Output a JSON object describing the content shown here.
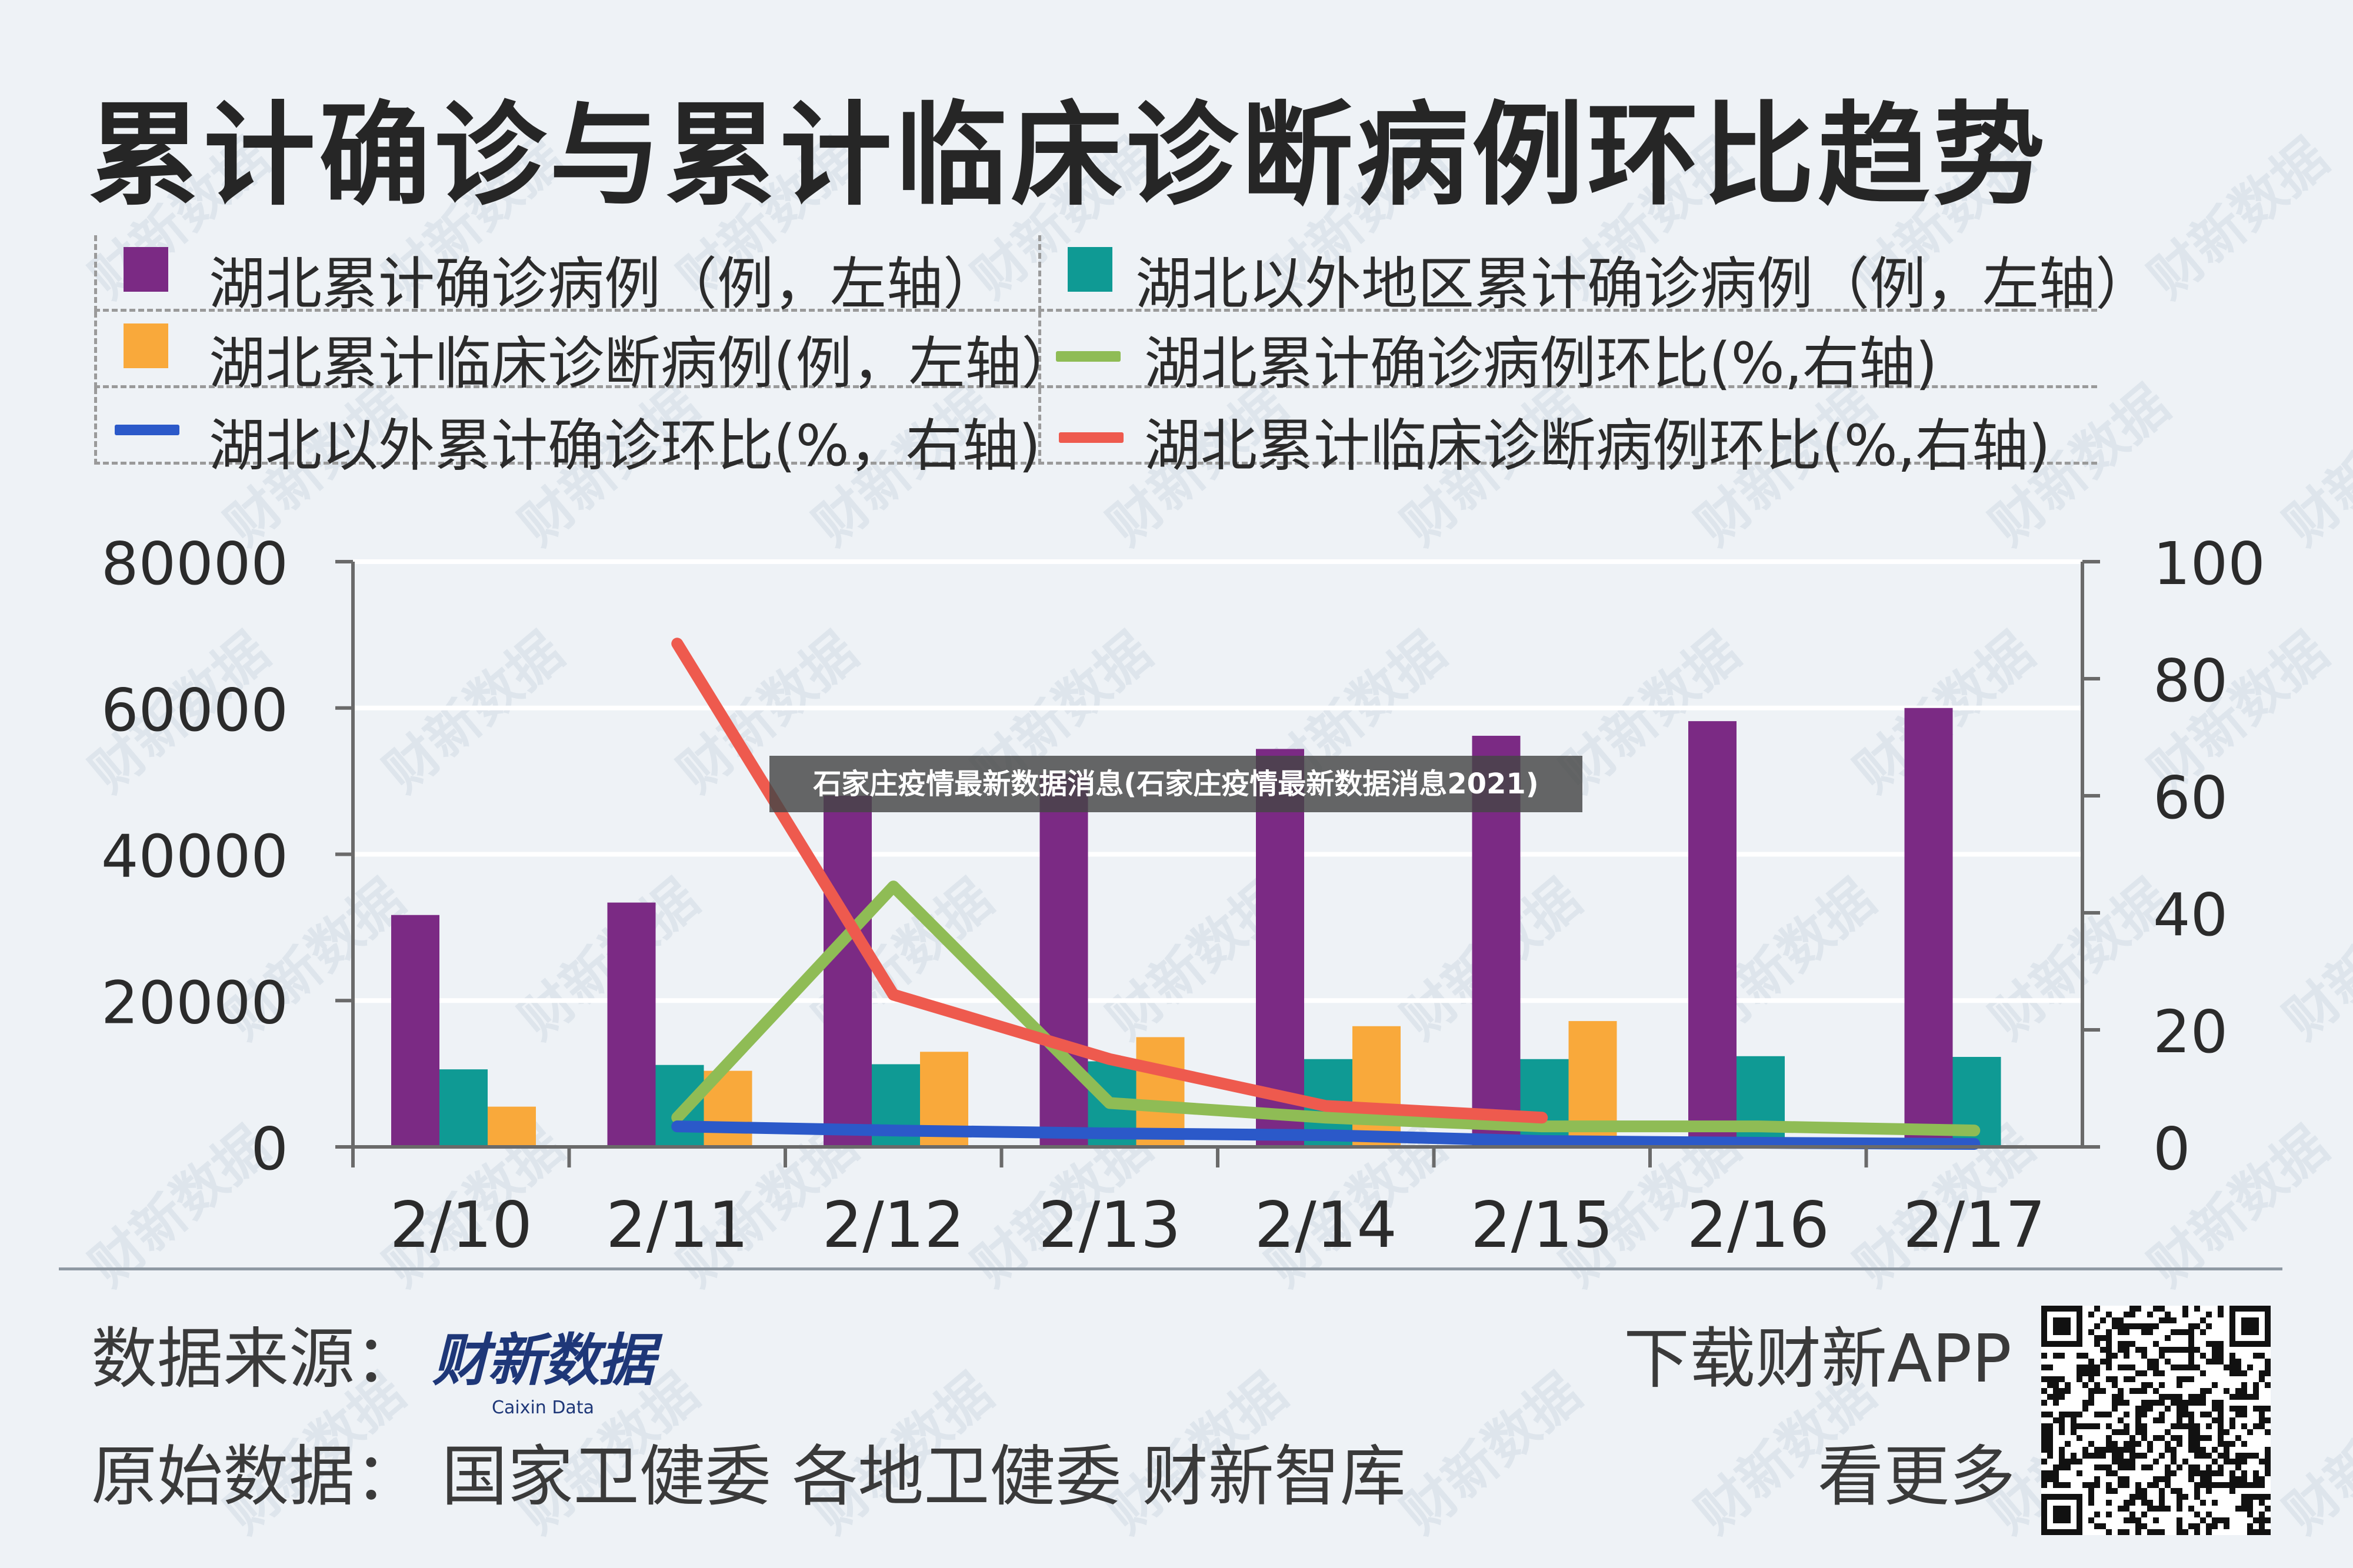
{
  "title": "累计确诊与累计临床诊断病例环比趋势",
  "legend": [
    {
      "label": "湖北累计确诊病例（例，左轴）",
      "color": "#7b2a84",
      "kind": "box",
      "icon": "square-swatch"
    },
    {
      "label": "湖北以外地区累计确诊病例（例，左轴）",
      "color": "#0f9a94",
      "kind": "box",
      "icon": "square-swatch"
    },
    {
      "label": "湖北累计临床诊断病例(例，左轴）",
      "color": "#f9a93b",
      "kind": "box",
      "icon": "square-swatch"
    },
    {
      "label": "湖北累计确诊病例环比(%,右轴)",
      "color": "#8fbc55",
      "kind": "line",
      "icon": "line-swatch"
    },
    {
      "label": "湖北以外累计确诊环比(%，右轴)",
      "color": "#2b59c9",
      "kind": "line",
      "icon": "line-swatch"
    },
    {
      "label": "湖北累计临床诊断病例环比(%,右轴)",
      "color": "#ee5a4e",
      "kind": "line",
      "icon": "line-swatch"
    }
  ],
  "chart_data": {
    "type": "bar",
    "categories": [
      "2/10",
      "2/11",
      "2/12",
      "2/13",
      "2/14",
      "2/15",
      "2/16",
      "2/17"
    ],
    "left_axis": {
      "ticks": [
        "0",
        "20000",
        "40000",
        "60000",
        "80000"
      ],
      "ylim": [
        0,
        80000
      ]
    },
    "right_axis": {
      "ticks": [
        "0",
        "20",
        "40",
        "60",
        "80",
        "100"
      ],
      "ylim": [
        0,
        100
      ]
    },
    "bar_series": [
      {
        "name": "湖北累计确诊病例（例，左轴）",
        "color": "#7b2a84",
        "values": [
          31700,
          33400,
          48000,
          51000,
          54400,
          56200,
          58200,
          60000
        ]
      },
      {
        "name": "湖北以外地区累计确诊病例（例，左轴）",
        "color": "#0f9a94",
        "values": [
          10600,
          11200,
          11300,
          11700,
          12000,
          12000,
          12400,
          12300
        ]
      },
      {
        "name": "湖北累计临床诊断病例(例，左轴）",
        "color": "#f9a93b",
        "values": [
          5500,
          10400,
          13000,
          15000,
          16500,
          17200,
          null,
          null
        ]
      }
    ],
    "line_series": [
      {
        "name": "湖北累计确诊病例环比(%,右轴)",
        "color": "#8fbc55",
        "values": [
          null,
          5,
          44.5,
          7.5,
          5,
          3.5,
          3.5,
          2.8
        ]
      },
      {
        "name": "湖北以外累计确诊环比(%，右轴)",
        "color": "#2b59c9",
        "values": [
          null,
          3.5,
          2.8,
          2.3,
          2,
          1,
          0.7,
          0.5
        ]
      },
      {
        "name": "湖北累计临床诊断病例环比(%,右轴)",
        "color": "#ee5a4e",
        "values": [
          null,
          86,
          26,
          15,
          7,
          5,
          null,
          null
        ]
      }
    ]
  },
  "banner": "石家庄疫情最新数据消息(石家庄疫情最新数据消息2021)",
  "footer": {
    "source_label": "数据来源：",
    "logo_cn": "财新数据",
    "logo_en": "Caixin Data",
    "original_label": "原始数据：  国家卫健委  各地卫健委  财新智库",
    "download": "下载财新APP",
    "see_more": "看更多",
    "qr_icon": "qr-code-icon"
  },
  "watermark": "财新数据"
}
